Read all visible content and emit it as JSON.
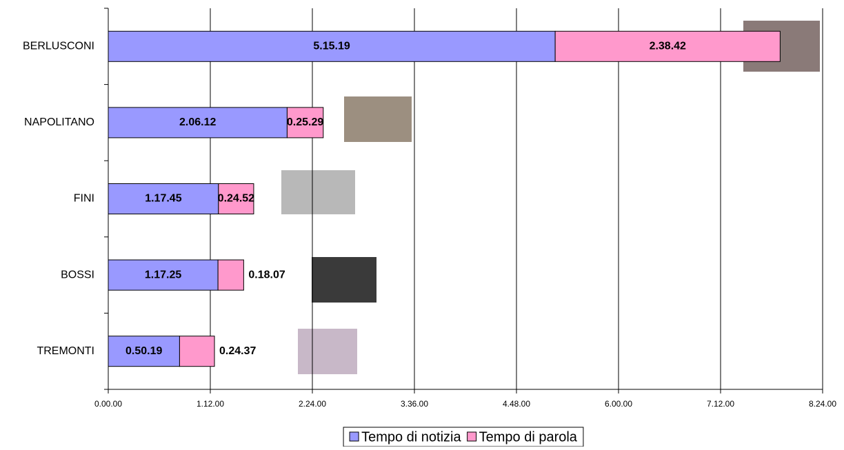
{
  "chart_data": {
    "type": "stacked-bar-horizontal",
    "categories": [
      "BERLUSCONI",
      "NAPOLITANO",
      "FINI",
      "BOSSI",
      "TREMONTI"
    ],
    "series": [
      {
        "name": "Tempo di notizia",
        "color": "#9999ff",
        "values": [
          315.3167,
          126.2,
          77.75,
          77.4167,
          50.3167
        ],
        "value_labels": [
          "5.15.19",
          "2.06.12",
          "1.17.45",
          "1.17.25",
          "0.50.19"
        ]
      },
      {
        "name": "Tempo di parola",
        "color": "#ff99cc",
        "values": [
          158.7,
          25.4833,
          24.8667,
          18.1167,
          24.6167
        ],
        "value_labels": [
          "2.38.42",
          "0.25.29",
          "0.24.52",
          "0.18.07",
          "0.24.37"
        ]
      }
    ],
    "xlim": [
      0,
      504
    ],
    "xticks": [
      {
        "value": 0,
        "label": "0.00.00"
      },
      {
        "value": 72,
        "label": "1.12.00"
      },
      {
        "value": 144,
        "label": "2.24.00"
      },
      {
        "value": 216,
        "label": "3.36.00"
      },
      {
        "value": 288,
        "label": "4.48.00"
      },
      {
        "value": 360,
        "label": "6.00.00"
      },
      {
        "value": 432,
        "label": "7.12.00"
      },
      {
        "value": 504,
        "label": "8.24.00"
      }
    ],
    "grid": true,
    "legend": "bottom"
  }
}
